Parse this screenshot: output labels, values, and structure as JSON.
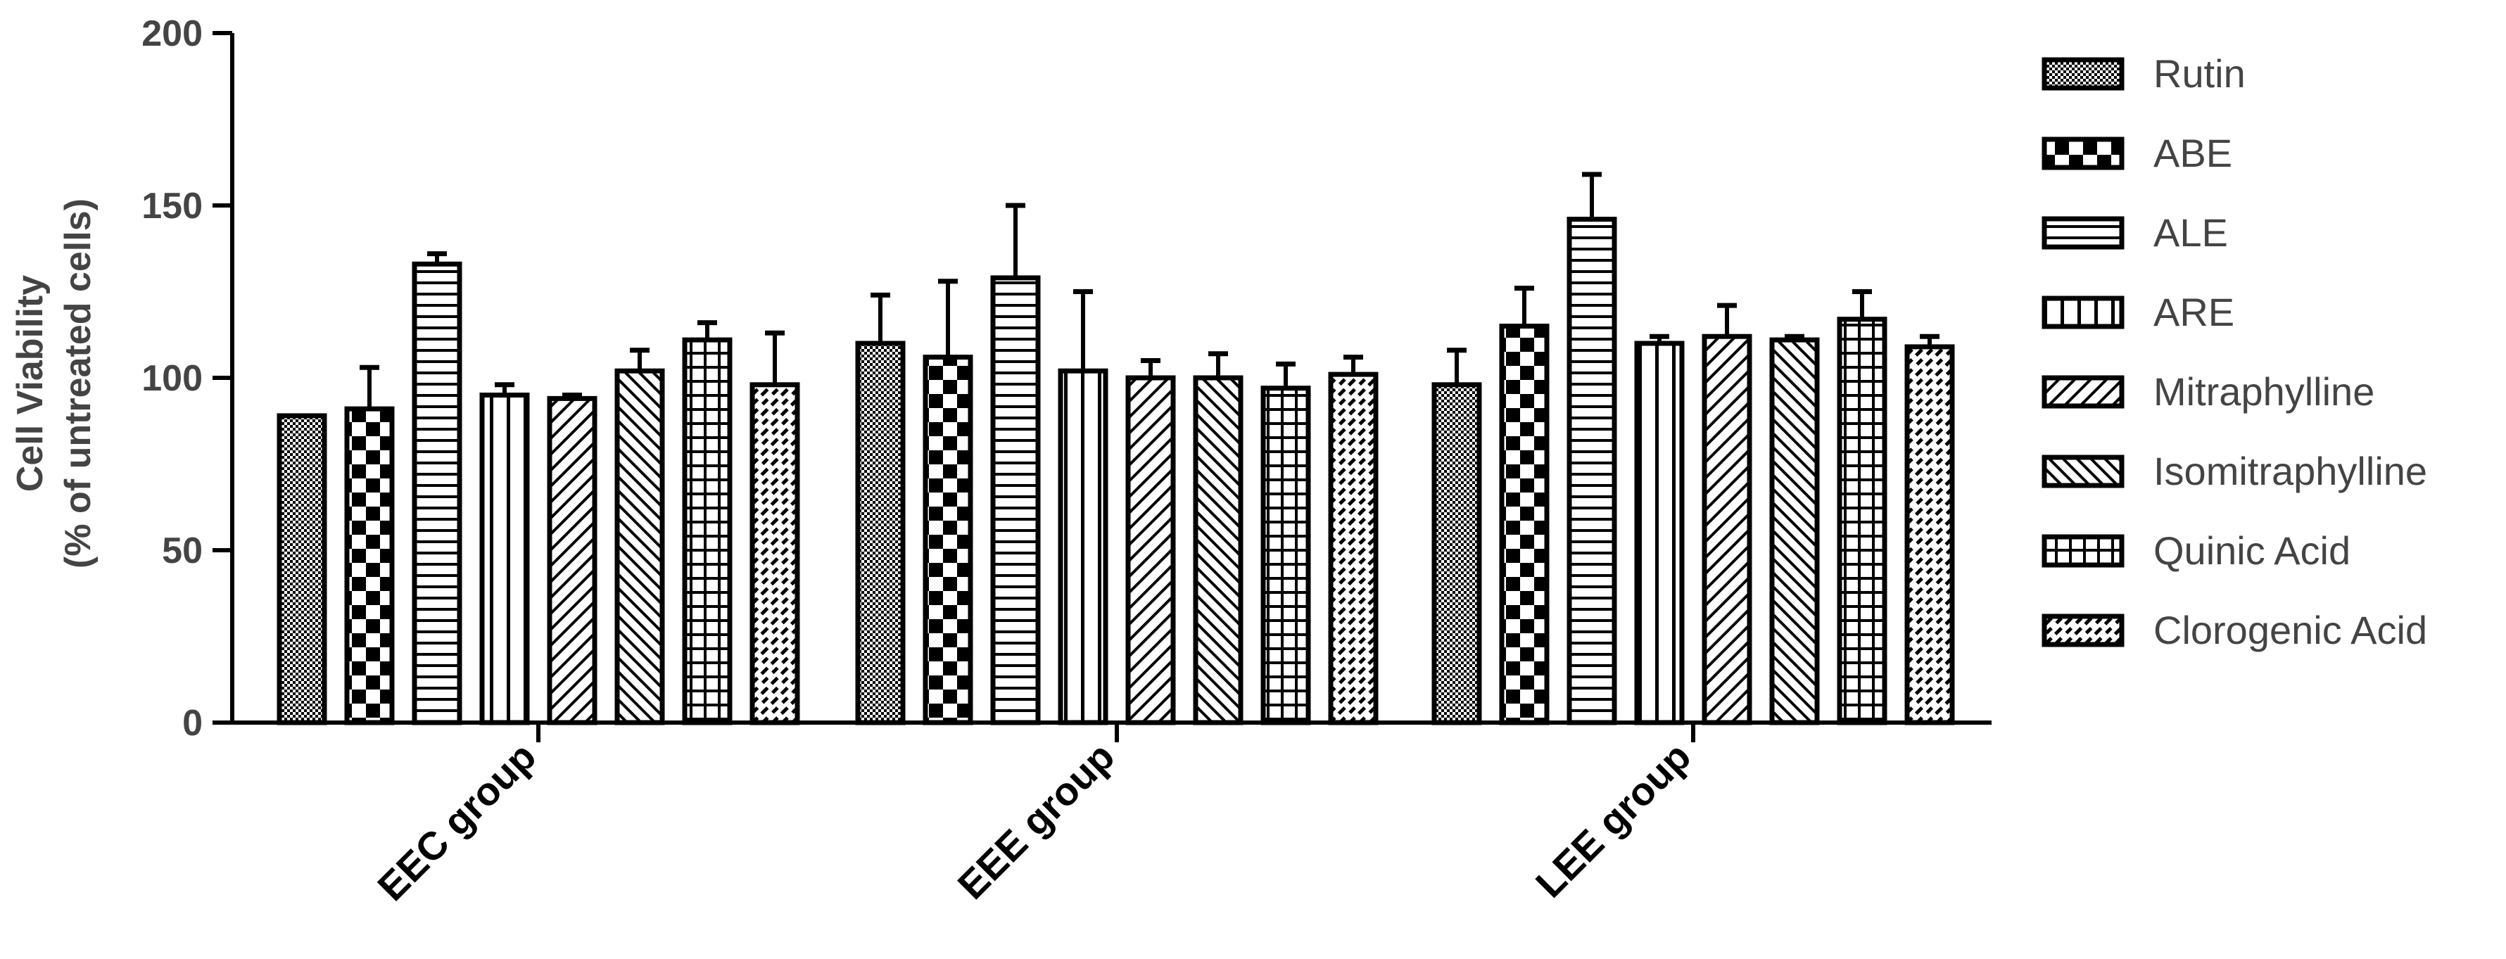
{
  "chart_data": {
    "type": "bar",
    "title": "",
    "ylabel_lines": [
      "Cell Viability",
      "(% of untreated cells)"
    ],
    "xlabel": "",
    "ylim": [
      0,
      200
    ],
    "yticks": [
      0,
      50,
      100,
      150,
      200
    ],
    "categories": [
      "EEC group",
      "EEE group",
      "LEE group"
    ],
    "series": [
      {
        "name": "Rutin",
        "pattern": "fine-dots",
        "values": [
          89,
          110,
          98
        ],
        "errors": [
          0,
          14,
          10
        ]
      },
      {
        "name": "ABE",
        "pattern": "checker",
        "values": [
          91,
          106,
          115
        ],
        "errors": [
          12,
          22,
          11
        ]
      },
      {
        "name": "ALE",
        "pattern": "horizontal-lines",
        "values": [
          133,
          129,
          146
        ],
        "errors": [
          3,
          21,
          13
        ]
      },
      {
        "name": "ARE",
        "pattern": "vertical-lines",
        "values": [
          95,
          102,
          110
        ],
        "errors": [
          3,
          23,
          2
        ]
      },
      {
        "name": "Mitraphylline",
        "pattern": "diagonal-up",
        "values": [
          94,
          100,
          112
        ],
        "errors": [
          1,
          5,
          9
        ]
      },
      {
        "name": "Isomitraphylline",
        "pattern": "diagonal-down",
        "values": [
          102,
          100,
          111
        ],
        "errors": [
          6,
          7,
          1
        ]
      },
      {
        "name": "Quinic Acid",
        "pattern": "grid",
        "values": [
          111,
          97,
          117
        ],
        "errors": [
          5,
          7,
          8
        ]
      },
      {
        "name": "Clorogenic Acid",
        "pattern": "dashed-diagonal",
        "values": [
          98,
          101,
          109
        ],
        "errors": [
          15,
          5,
          3
        ]
      }
    ],
    "legend_position": "right",
    "grid": false
  }
}
